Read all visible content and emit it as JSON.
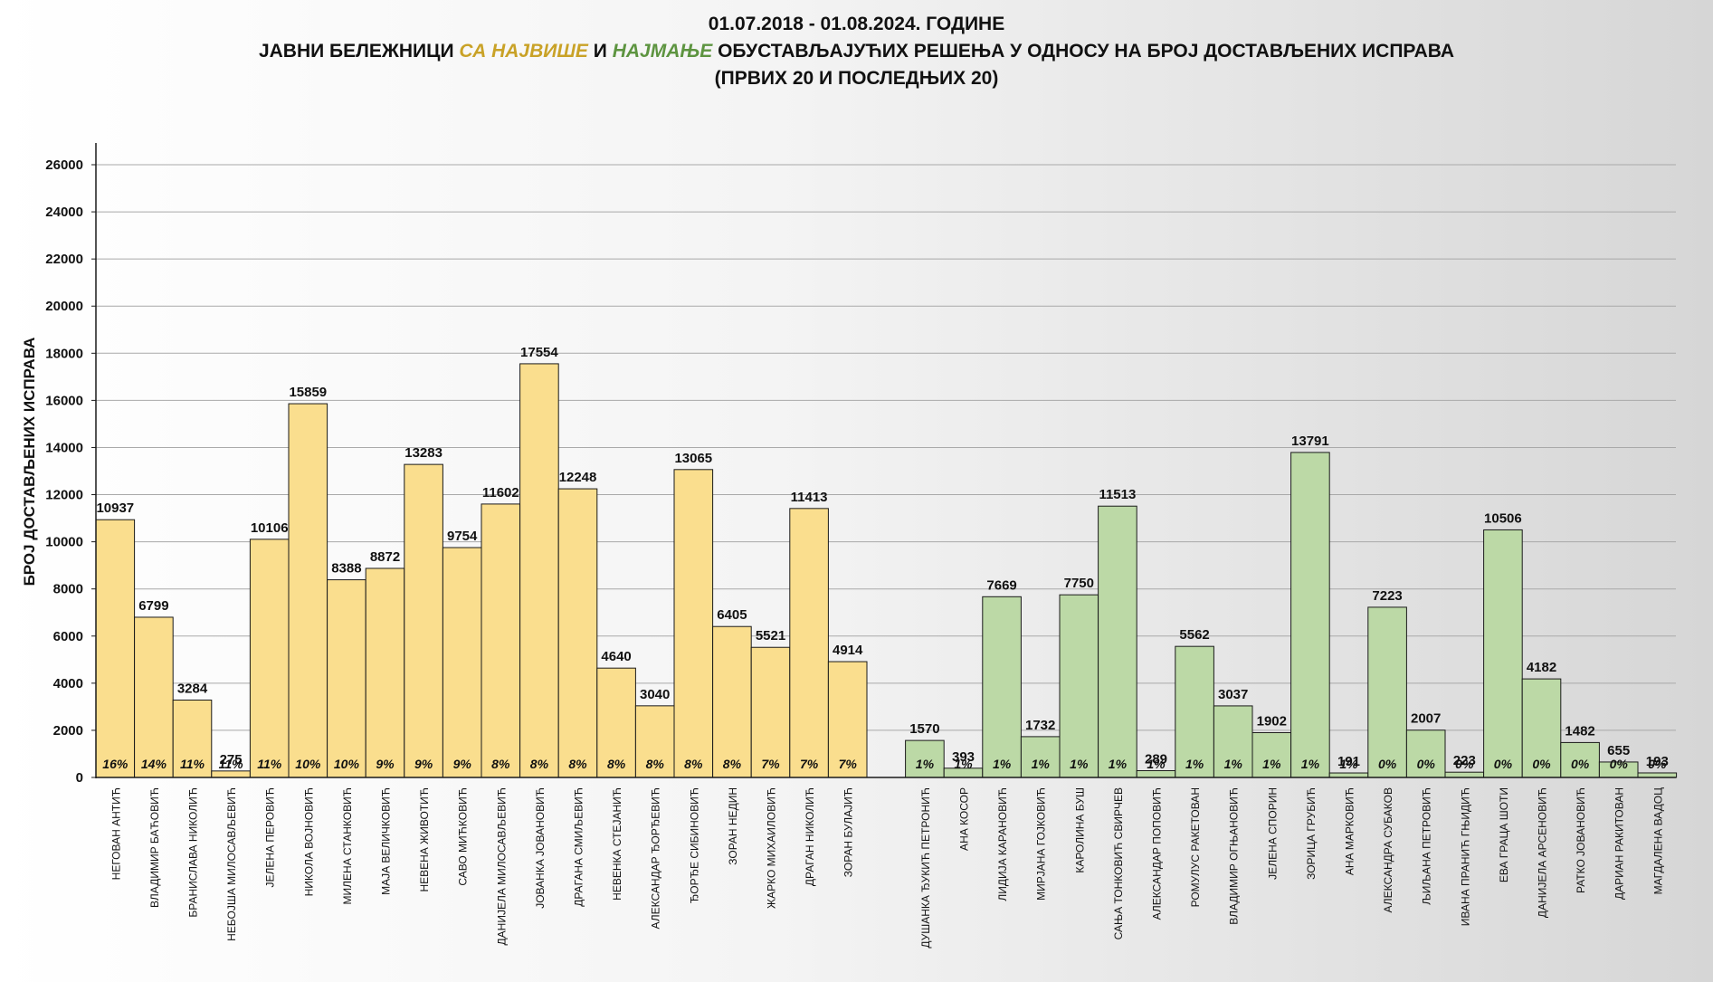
{
  "title": {
    "line1": "01.07.2018  - 01.08.2024.  ГОДИНЕ",
    "line2_a": "ЈАВНИ БЕЛЕЖНИЦИ ",
    "line2_b": "СА ",
    "line2_c": "НАЈВИШЕ",
    "line2_d": " И ",
    "line2_e": "НАЈМАЊЕ",
    "line2_f": " ОБУСТАВЉАЈУЋИХ РЕШЕЊА У ОДНОСУ НА БРОЈ ДОСТАВЉЕНИХ ИСПРАВА",
    "line3": "(ПРВИХ 20 И ПОСЛЕДЊИХ 20)"
  },
  "colors": {
    "top_bar": "#fade8e",
    "bottom_bar": "#bcd9a6",
    "bar_stroke": "#1a1a1a",
    "grid": "#a9a9a9",
    "highlight_most": "#c9a227",
    "highlight_least": "#5d9440"
  },
  "chart_data": {
    "type": "bar",
    "ylabel": "БРОЈ ДОСТАВЉЕНИХ ИСПРАВА",
    "ylim": [
      0,
      26000
    ],
    "yticks": [
      "0",
      "2000",
      "4000",
      "6000",
      "8000",
      "10000",
      "12000",
      "14000",
      "16000",
      "18000",
      "20000",
      "22000",
      "24000",
      "26000"
    ],
    "grid": true,
    "groups": [
      {
        "group": "top20",
        "color": "#fade8e",
        "categories": [
          "НЕГОВАН АНТИЋ",
          "ВЛАДИМИР БАЋОВИЋ",
          "БРАНИСЛАВА НИКОЛИЋ",
          "НЕБОЈША МИЛОСАВЉЕВИЋ",
          "ЈЕЛЕНА ПЕРОВИЋ",
          "НИКОЛА ВОЈНОВИЋ",
          "МИЛЕНА СТАНКОВИЋ",
          "МАЈА ВЕЛИЧКОВИЋ",
          "НЕВЕНА ЖИВОТИЋ",
          "САВО МИЋКОВИЋ",
          "ДАНИЈЕЛА МИЛОСАВЉЕВИЋ",
          "ЈОВАНКА ЈОВАНОВИЋ",
          "ДРАГАНА СМИЉЕВИЋ",
          "НЕВЕНКА СТЕЈАНИЋ",
          "АЛЕКСАНДАР ЂОРЂЕВИЋ",
          "ЂОРЂЕ СИБИНОВИЋ",
          "ЗОРАН НЕДИН",
          "ЖАРКО МИХАИЛОВИЋ",
          "ДРАГАН НИКОЛИЋ",
          "ЗОРАН БУЛАЈИЋ"
        ],
        "values": [
          10937,
          6799,
          3284,
          275,
          10106,
          15859,
          8388,
          8872,
          13283,
          9754,
          11602,
          17554,
          12248,
          4640,
          3040,
          13065,
          6405,
          5521,
          11413,
          4914
        ],
        "percent_labels": [
          "16%",
          "14%",
          "11%",
          "11%",
          "11%",
          "10%",
          "10%",
          "9%",
          "9%",
          "9%",
          "8%",
          "8%",
          "8%",
          "8%",
          "8%",
          "8%",
          "8%",
          "7%",
          "7%",
          "7%"
        ]
      },
      {
        "group": "bottom20",
        "color": "#bcd9a6",
        "categories": [
          "ДУШАНКА ЂУКИЋ ПЕТРОНИЋ",
          "АНА КОСОР",
          "ЛИДИЈА КАРАНОВИЋ",
          "МИРЈАНА ГОЈКОВИЋ",
          "КАРОЛИНА БУШ",
          "САЊА ТОНКОВИЋ СВИРЧЕВ",
          "АЛЕКСАНДАР ПОПОВИЋ",
          "РОМУЛУС РАКЕТОВАН",
          "ВЛАДИМИР ОГЊАНОВИЋ",
          "ЈЕЛЕНА СПОРИН",
          "ЗОРИЦА ГРУБИЋ",
          "АНА МАРКОВИЋ",
          "АЛЕКСАНДРА СУБАКОВ",
          "ЉИЉАНА ПЕТРОВИЋ",
          "ИВАНА ПРАНИЋ ГЊИДИЋ",
          "ЕВА ГРАЦА ШОТИ",
          "ДАНИЈЕЛА АРСЕНОВИЋ",
          "РАТКО ЈОВАНОВИЋ",
          "ДАРИАН РАКИТОВАН",
          "МАГДАЛЕНА ВАДОЦ"
        ],
        "values": [
          1570,
          393,
          7669,
          1732,
          7750,
          11513,
          289,
          5562,
          3037,
          1902,
          13791,
          191,
          7223,
          2007,
          223,
          10506,
          4182,
          1482,
          655,
          193
        ],
        "percent_labels": [
          "1%",
          "1%",
          "1%",
          "1%",
          "1%",
          "1%",
          "1%",
          "1%",
          "1%",
          "1%",
          "1%",
          "1%",
          "0%",
          "0%",
          "0%",
          "0%",
          "0%",
          "0%",
          "0%",
          "0%"
        ]
      }
    ]
  }
}
